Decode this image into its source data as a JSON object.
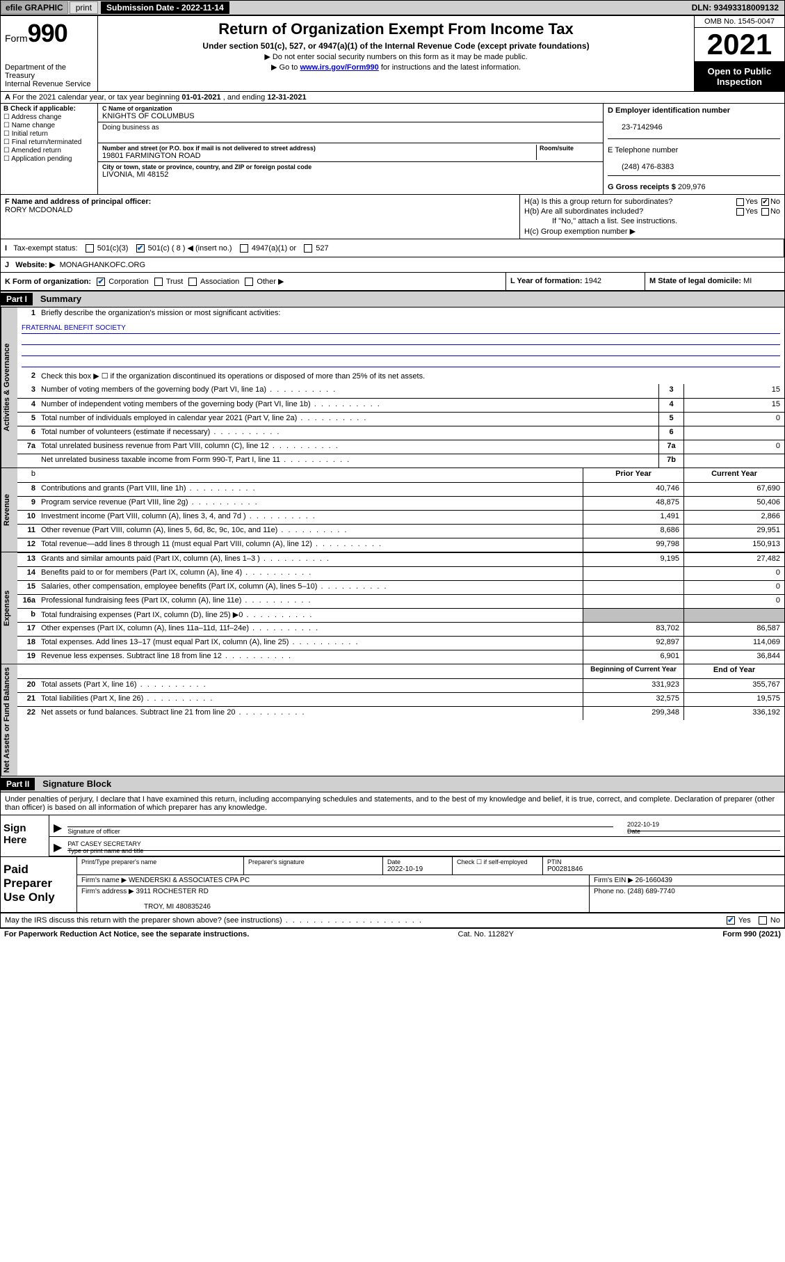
{
  "topbar": {
    "efile": "efile GRAPHIC",
    "print": "print",
    "submission": "Submission Date - 2022-11-14",
    "dln": "DLN: 93493318009132"
  },
  "header": {
    "form_prefix": "Form",
    "form_number": "990",
    "title": "Return of Organization Exempt From Income Tax",
    "subtitle": "Under section 501(c), 527, or 4947(a)(1) of the Internal Revenue Code (except private foundations)",
    "line1": "Do not enter social security numbers on this form as it may be made public.",
    "line2_pre": "Go to ",
    "line2_link": "www.irs.gov/Form990",
    "line2_post": " for instructions and the latest information.",
    "dept": "Department of the Treasury",
    "irs": "Internal Revenue Service",
    "omb": "OMB No. 1545-0047",
    "year": "2021",
    "open": "Open to Public Inspection"
  },
  "rowA": {
    "label_pre": "For the 2021 calendar year, or tax year beginning ",
    "begin": "01-01-2021",
    "mid": " , and ending ",
    "end": "12-31-2021"
  },
  "colB": {
    "label": "B Check if applicable:",
    "items": [
      "Address change",
      "Name change",
      "Initial return",
      "Final return/terminated",
      "Amended return",
      "Application pending"
    ]
  },
  "colC": {
    "name_lbl": "C Name of organization",
    "name": "KNIGHTS OF COLUMBUS",
    "dba_lbl": "Doing business as",
    "dba": "",
    "addr_lbl": "Number and street (or P.O. box if mail is not delivered to street address)",
    "room_lbl": "Room/suite",
    "addr": "19801 FARMINGTON ROAD",
    "city_lbl": "City or town, state or province, country, and ZIP or foreign postal code",
    "city": "LIVONIA, MI  48152"
  },
  "colD": {
    "ein_lbl": "D Employer identification number",
    "ein": "23-7142946",
    "phone_lbl": "E Telephone number",
    "phone": "(248) 476-8383",
    "gross_lbl": "G Gross receipts $",
    "gross": "209,976"
  },
  "colF": {
    "lbl": "F Name and address of principal officer:",
    "name": "RORY MCDONALD"
  },
  "colH": {
    "ha": "H(a)  Is this a group return for subordinates?",
    "hb": "H(b)  Are all subordinates included?",
    "hb_note": "If \"No,\" attach a list. See instructions.",
    "hc": "H(c)  Group exemption number ▶"
  },
  "rowI": {
    "lbl": "Tax-exempt status:",
    "opt1": "501(c)(3)",
    "opt2": "501(c) ( 8 ) ◀ (insert no.)",
    "opt3": "4947(a)(1) or",
    "opt4": "527"
  },
  "rowJ": {
    "lbl": "Website: ▶",
    "val": "MONAGHANKOFC.ORG"
  },
  "rowK": {
    "lbl": "K Form of organization:",
    "opts": [
      "Corporation",
      "Trust",
      "Association",
      "Other ▶"
    ],
    "L_lbl": "L Year of formation:",
    "L_val": "1942",
    "M_lbl": "M State of legal domicile:",
    "M_val": "MI"
  },
  "part1": {
    "hdr": "Part I",
    "title": "Summary",
    "vtabs": [
      "Activities & Governance",
      "Revenue",
      "Expenses",
      "Net Assets or Fund Balances"
    ],
    "q1_lbl": "Briefly describe the organization's mission or most significant activities:",
    "q1_val": "FRATERNAL BENEFIT SOCIETY",
    "q2": "Check this box ▶ ☐  if the organization discontinued its operations or disposed of more than 25% of its net assets.",
    "rows_gov": [
      {
        "n": "3",
        "d": "Number of voting members of the governing body (Part VI, line 1a)",
        "c": "3",
        "v": "15"
      },
      {
        "n": "4",
        "d": "Number of independent voting members of the governing body (Part VI, line 1b)",
        "c": "4",
        "v": "15"
      },
      {
        "n": "5",
        "d": "Total number of individuals employed in calendar year 2021 (Part V, line 2a)",
        "c": "5",
        "v": "0"
      },
      {
        "n": "6",
        "d": "Total number of volunteers (estimate if necessary)",
        "c": "6",
        "v": ""
      },
      {
        "n": "7a",
        "d": "Total unrelated business revenue from Part VIII, column (C), line 12",
        "c": "7a",
        "v": "0"
      },
      {
        "n": "",
        "d": "Net unrelated business taxable income from Form 990-T, Part I, line 11",
        "c": "7b",
        "v": ""
      }
    ],
    "col_prior": "Prior Year",
    "col_curr": "Current Year",
    "rows_rev": [
      {
        "n": "8",
        "d": "Contributions and grants (Part VIII, line 1h)",
        "p": "40,746",
        "c": "67,690"
      },
      {
        "n": "9",
        "d": "Program service revenue (Part VIII, line 2g)",
        "p": "48,875",
        "c": "50,406"
      },
      {
        "n": "10",
        "d": "Investment income (Part VIII, column (A), lines 3, 4, and 7d )",
        "p": "1,491",
        "c": "2,866"
      },
      {
        "n": "11",
        "d": "Other revenue (Part VIII, column (A), lines 5, 6d, 8c, 9c, 10c, and 11e)",
        "p": "8,686",
        "c": "29,951"
      },
      {
        "n": "12",
        "d": "Total revenue—add lines 8 through 11 (must equal Part VIII, column (A), line 12)",
        "p": "99,798",
        "c": "150,913"
      }
    ],
    "rows_exp": [
      {
        "n": "13",
        "d": "Grants and similar amounts paid (Part IX, column (A), lines 1–3 )",
        "p": "9,195",
        "c": "27,482"
      },
      {
        "n": "14",
        "d": "Benefits paid to or for members (Part IX, column (A), line 4)",
        "p": "",
        "c": "0"
      },
      {
        "n": "15",
        "d": "Salaries, other compensation, employee benefits (Part IX, column (A), lines 5–10)",
        "p": "",
        "c": "0"
      },
      {
        "n": "16a",
        "d": "Professional fundraising fees (Part IX, column (A), line 11e)",
        "p": "",
        "c": "0"
      },
      {
        "n": "b",
        "d": "Total fundraising expenses (Part IX, column (D), line 25) ▶0",
        "p": "shade",
        "c": "shade"
      },
      {
        "n": "17",
        "d": "Other expenses (Part IX, column (A), lines 11a–11d, 11f–24e)",
        "p": "83,702",
        "c": "86,587"
      },
      {
        "n": "18",
        "d": "Total expenses. Add lines 13–17 (must equal Part IX, column (A), line 25)",
        "p": "92,897",
        "c": "114,069"
      },
      {
        "n": "19",
        "d": "Revenue less expenses. Subtract line 18 from line 12",
        "p": "6,901",
        "c": "36,844"
      }
    ],
    "col_begin": "Beginning of Current Year",
    "col_end": "End of Year",
    "rows_net": [
      {
        "n": "20",
        "d": "Total assets (Part X, line 16)",
        "p": "331,923",
        "c": "355,767"
      },
      {
        "n": "21",
        "d": "Total liabilities (Part X, line 26)",
        "p": "32,575",
        "c": "19,575"
      },
      {
        "n": "22",
        "d": "Net assets or fund balances. Subtract line 21 from line 20",
        "p": "299,348",
        "c": "336,192"
      }
    ]
  },
  "part2": {
    "hdr": "Part II",
    "title": "Signature Block",
    "intro": "Under penalties of perjury, I declare that I have examined this return, including accompanying schedules and statements, and to the best of my knowledge and belief, it is true, correct, and complete. Declaration of preparer (other than officer) is based on all information of which preparer has any knowledge.",
    "sign_here": "Sign Here",
    "sig_of_officer": "Signature of officer",
    "sig_date_val": "2022-10-19",
    "date_lbl": "Date",
    "officer_name": "PAT CASEY SECRETARY",
    "type_name_lbl": "Type or print name and title",
    "paid_hdr": "Paid Preparer Use Only",
    "prep_name_lbl": "Print/Type preparer's name",
    "prep_sig_lbl": "Preparer's signature",
    "prep_date_lbl": "Date",
    "prep_date": "2022-10-19",
    "check_self": "Check ☐ if self-employed",
    "ptin_lbl": "PTIN",
    "ptin": "P00281846",
    "firm_name_lbl": "Firm's name   ▶",
    "firm_name": "WENDERSKI & ASSOCIATES CPA PC",
    "firm_ein_lbl": "Firm's EIN ▶",
    "firm_ein": "26-1660439",
    "firm_addr_lbl": "Firm's address ▶",
    "firm_addr1": "3911 ROCHESTER RD",
    "firm_addr2": "TROY, MI  480835246",
    "firm_phone_lbl": "Phone no.",
    "firm_phone": "(248) 689-7740",
    "may_irs": "May the IRS discuss this return with the preparer shown above? (see instructions)"
  },
  "footer": {
    "left": "For Paperwork Reduction Act Notice, see the separate instructions.",
    "center": "Cat. No. 11282Y",
    "right": "Form 990 (2021)"
  }
}
